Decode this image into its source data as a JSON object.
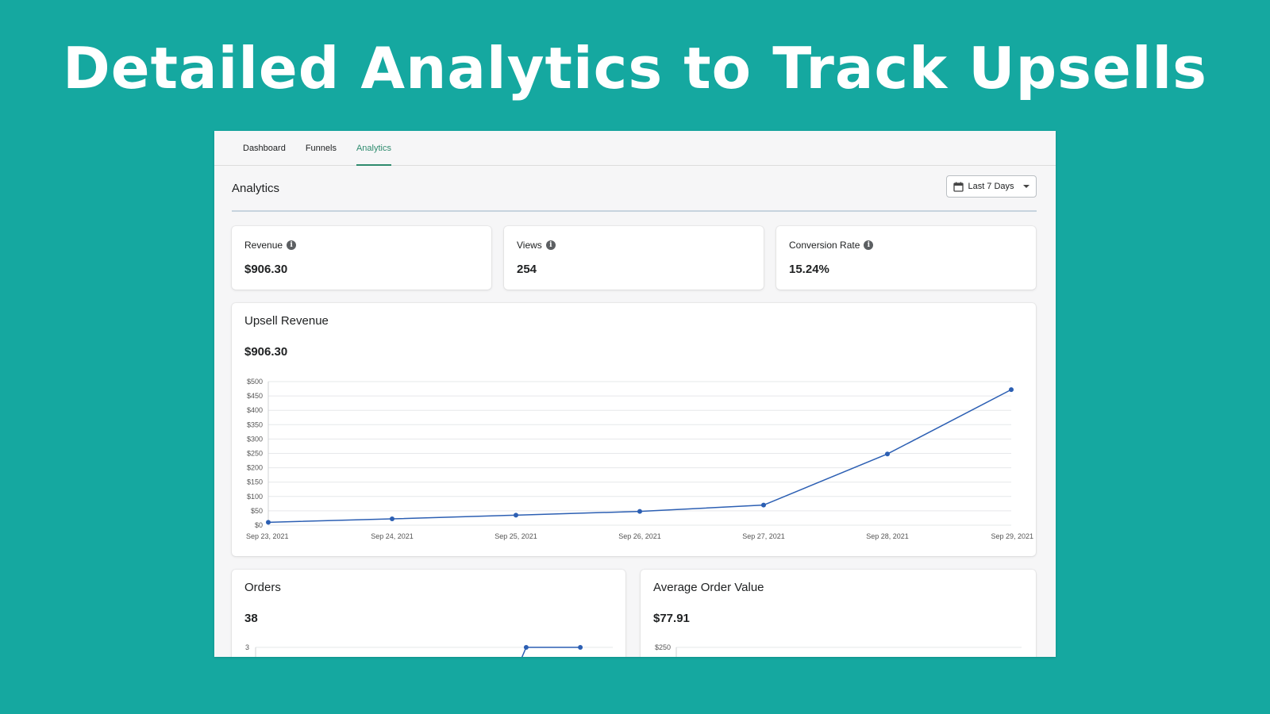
{
  "hero": {
    "title": "Detailed Analytics to Track Upsells"
  },
  "nav": {
    "tabs": [
      {
        "label": "Dashboard",
        "active": false
      },
      {
        "label": "Funnels",
        "active": false
      },
      {
        "label": "Analytics",
        "active": true
      }
    ]
  },
  "header": {
    "title": "Analytics",
    "date_range": "Last 7 Days"
  },
  "metrics": [
    {
      "label": "Revenue",
      "value": "$906.30"
    },
    {
      "label": "Views",
      "value": "254"
    },
    {
      "label": "Conversion Rate",
      "value": "15.24%"
    }
  ],
  "upsell": {
    "title": "Upsell Revenue",
    "value": "$906.30"
  },
  "orders": {
    "title": "Orders",
    "value": "38"
  },
  "aov": {
    "title": "Average Order Value",
    "value": "$77.91"
  },
  "colors": {
    "accent": "#2e8b6e",
    "line": "#2c5fb3",
    "background": "#15a8a0"
  },
  "chart_data": [
    {
      "type": "line",
      "title": "Upsell Revenue",
      "x": [
        "Sep 23, 2021",
        "Sep 24, 2021",
        "Sep 25, 2021",
        "Sep 26, 2021",
        "Sep 27, 2021",
        "Sep 28, 2021",
        "Sep 29, 2021"
      ],
      "y": [
        10,
        22,
        35,
        48,
        70,
        248,
        472
      ],
      "yticks": [
        "$0",
        "$50",
        "$100",
        "$150",
        "$200",
        "$250",
        "$300",
        "$350",
        "$400",
        "$450",
        "$500"
      ],
      "ylim": [
        0,
        500
      ],
      "grid": true
    },
    {
      "type": "line",
      "title": "Orders",
      "x_visible_points": [
        6,
        7
      ],
      "y_visible": [
        3,
        3
      ],
      "yticks_visible": [
        "3"
      ],
      "grid": true
    },
    {
      "type": "line",
      "title": "Average Order Value",
      "yticks_visible": [
        "$250"
      ],
      "grid": true
    }
  ]
}
